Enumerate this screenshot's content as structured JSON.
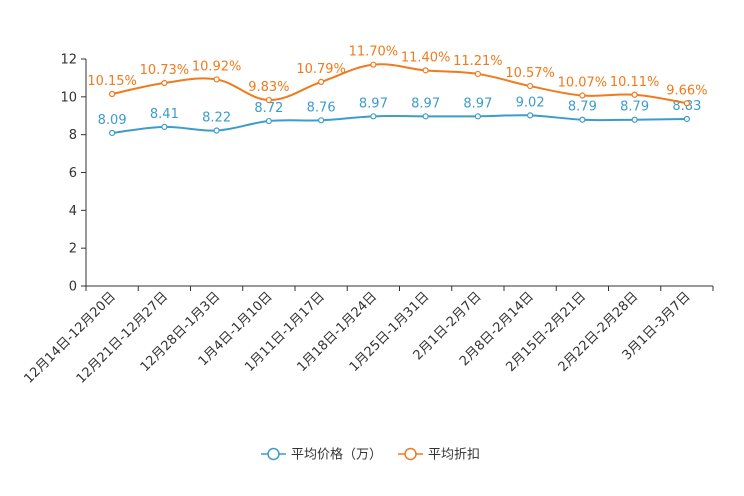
{
  "chart_data": {
    "type": "line",
    "title": "",
    "xlabel": "",
    "ylabel": "",
    "ylim": [
      0,
      12
    ],
    "yticks": [
      0,
      2,
      4,
      6,
      8,
      10,
      12
    ],
    "categories": [
      "12月14日-12月20日",
      "12月21日-12月27日",
      "12月28日-1月3日",
      "1月4日-1月10日",
      "1月11日-1月17日",
      "1月18日-1月24日",
      "1月25日-1月31日",
      "2月1日-2月7日",
      "2月8日-2月14日",
      "2月15日-2月21日",
      "2月22日-2月28日",
      "3月1日-3月7日"
    ],
    "series": [
      {
        "name": "平均价格（万）",
        "color": "#3c9ccc",
        "values": [
          8.09,
          8.41,
          8.22,
          8.72,
          8.76,
          8.97,
          8.97,
          8.97,
          9.02,
          8.79,
          8.79,
          8.83
        ],
        "labels": [
          "8.09",
          "8.41",
          "8.22",
          "8.72",
          "8.76",
          "8.97",
          "8.97",
          "8.97",
          "9.02",
          "8.79",
          "8.79",
          "8.83"
        ]
      },
      {
        "name": "平均折扣",
        "color": "#f07a1c",
        "values": [
          10.15,
          10.73,
          10.92,
          9.83,
          10.79,
          11.7,
          11.4,
          11.21,
          10.57,
          10.07,
          10.11,
          9.66
        ],
        "labels": [
          "10.15%",
          "10.73%",
          "10.92%",
          "9.83%",
          "10.79%",
          "11.70%",
          "11.40%",
          "11.21%",
          "10.57%",
          "10.07%",
          "10.11%",
          "9.66%"
        ]
      }
    ],
    "legend": "bottom",
    "grid": false
  }
}
